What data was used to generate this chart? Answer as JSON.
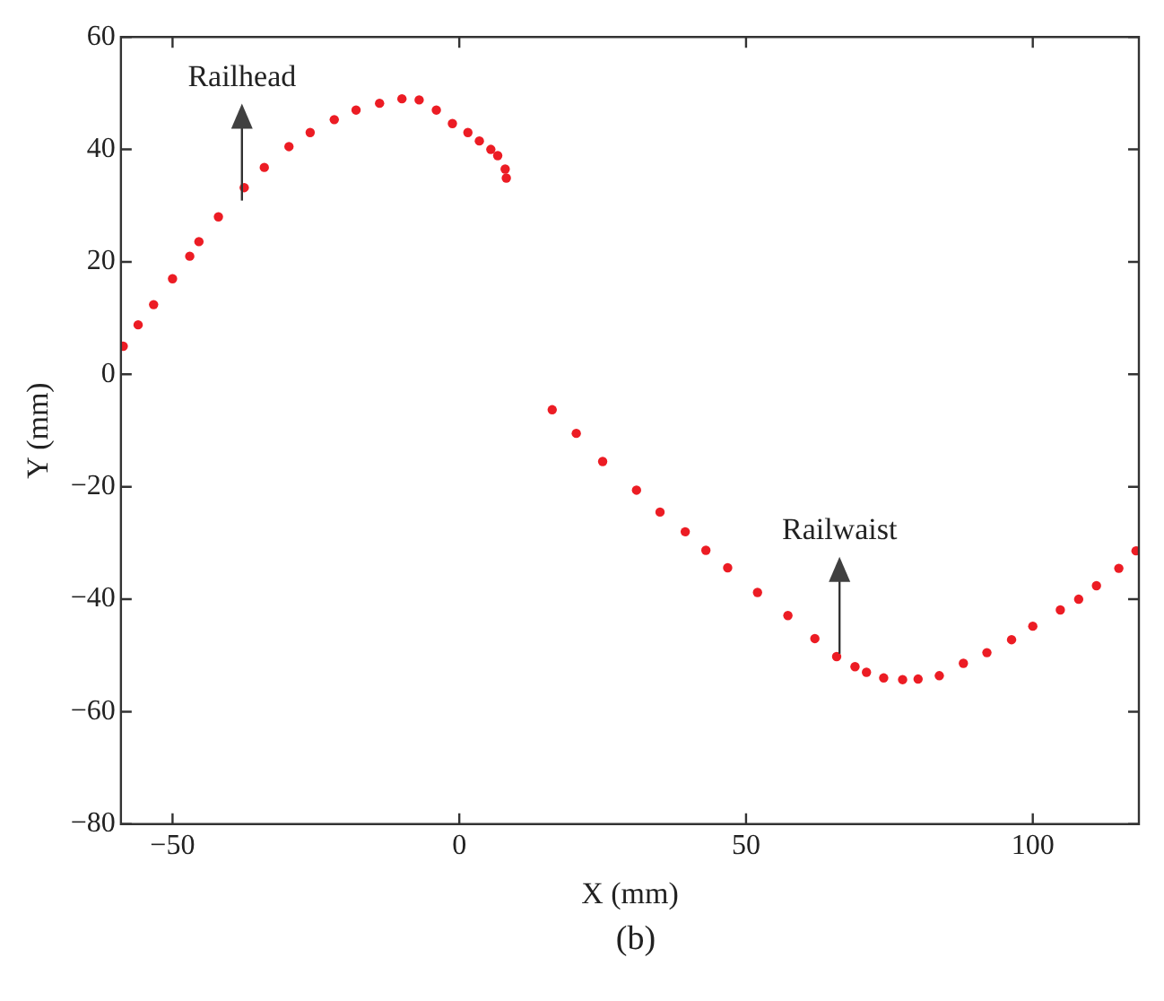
{
  "chart_data": {
    "type": "scatter",
    "xlabel": "X (mm)",
    "ylabel": "Y (mm)",
    "marker": "circle",
    "grid": false,
    "xlim": [
      -59,
      118.5
    ],
    "ylim": [
      -80,
      60
    ],
    "xticks": [
      {
        "value": -50,
        "label": "−50"
      },
      0,
      50,
      100
    ],
    "yticks": [
      {
        "value": -80,
        "label": "−80"
      },
      {
        "value": -60,
        "label": "−60"
      },
      {
        "value": -40,
        "label": "−40"
      },
      {
        "value": -20,
        "label": "−20"
      },
      0,
      20,
      40,
      60
    ],
    "series": [
      {
        "color": "#ec1c24",
        "x": [
          -58.6,
          -56,
          -53.3,
          -50,
          -47,
          -45.4,
          -42,
          -37.5,
          -34,
          -29.7,
          -26,
          -21.8,
          -18,
          -13.9,
          -10,
          -7,
          -4,
          -1.2,
          1.5,
          3.5,
          5.5,
          6.7,
          8,
          8.2
        ],
        "values": [
          5,
          8.8,
          12.4,
          17,
          21,
          23.6,
          28,
          33.2,
          36.8,
          40.5,
          43,
          45.3,
          47,
          48.2,
          49,
          48.8,
          47,
          44.6,
          43,
          41.5,
          40,
          38.9,
          36.5,
          34.9
        ]
      },
      {
        "color": "#ec1c24",
        "x": [
          16.2,
          20.4,
          25,
          30.9,
          35,
          39.4,
          43,
          46.8,
          52,
          57.3,
          62,
          65.8,
          69,
          71,
          74,
          77.3,
          80,
          83.7,
          87.9,
          92,
          96.3,
          100,
          104.8,
          108,
          111.1,
          115,
          118
        ],
        "values": [
          -6.3,
          -10.5,
          -15.5,
          -20.6,
          -24.5,
          -28,
          -31.3,
          -34.4,
          -38.8,
          -42.9,
          -47,
          -50.2,
          -52,
          -53,
          -54,
          -54.3,
          -54.2,
          -53.6,
          -51.4,
          -49.5,
          -47.2,
          -44.8,
          -41.9,
          -40,
          -37.6,
          -34.5,
          -31.4
        ]
      }
    ],
    "annotations": [
      {
        "text": "Railhead",
        "x": -37.9,
        "y": 30.9
      },
      {
        "text": "Railwaist",
        "x": 66.3,
        "y": -49.7
      },
      "(b)"
    ]
  }
}
